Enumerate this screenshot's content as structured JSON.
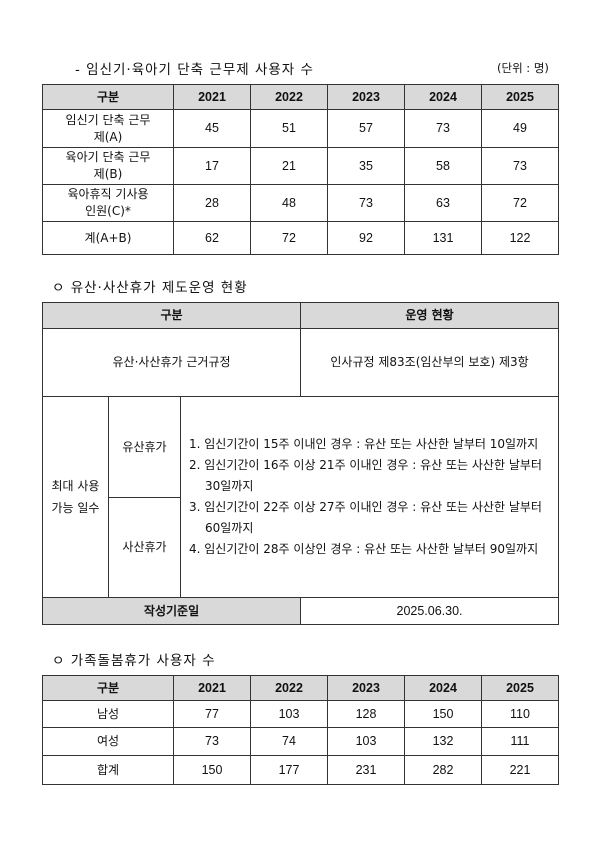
{
  "section1": {
    "title": "- 임신기·육아기 단축 근무제 사용자 수",
    "unit": "(단위 : 명)",
    "headers": [
      "구분",
      "2021",
      "2022",
      "2023",
      "2024",
      "2025"
    ],
    "rows": [
      {
        "label": "임신기 단축 근무제(A)",
        "values": [
          "45",
          "51",
          "57",
          "73",
          "49"
        ]
      },
      {
        "label": "육아기 단축 근무제(B)",
        "values": [
          "17",
          "21",
          "35",
          "58",
          "73"
        ]
      },
      {
        "label": "육아휴직 기사용인원(C)*",
        "values": [
          "28",
          "48",
          "73",
          "63",
          "72"
        ]
      },
      {
        "label": "계(A+B)",
        "values": [
          "62",
          "72",
          "92",
          "131",
          "122"
        ]
      }
    ]
  },
  "section2": {
    "title": "ㅇ 유산·사산휴가 제도운영 현황",
    "header_category": "구분",
    "header_status": "운영 현황",
    "basis_label": "유산·사산휴가 근거규정",
    "basis_value": "인사규정 제83조(임산부의 보호) 제3항",
    "max_days_label": "최대 사용가능 일수",
    "miscarriage_label": "유산휴가",
    "stillbirth_label": "사산휴가",
    "items": [
      "1. 임신기간이 15주 이내인 경우 : 유산 또는 사산한 날부터 10일까지",
      "2. 임신기간이 16주 이상 21주 이내인 경우 : 유산 또는 사산한 날부터 30일까지",
      "3. 임신기간이 22주 이상 27주 이내인 경우 : 유산 또는 사산한 날부터 60일까지",
      "4. 임신기간이 28주 이상인 경우 : 유산 또는 사산한 날부터 90일까지"
    ],
    "date_label": "작성기준일",
    "date_value": "2025.06.30."
  },
  "section3": {
    "title": "ㅇ 가족돌봄휴가 사용자 수",
    "headers": [
      "구분",
      "2021",
      "2022",
      "2023",
      "2024",
      "2025"
    ],
    "rows": [
      {
        "label": "남성",
        "values": [
          "77",
          "103",
          "128",
          "150",
          "110"
        ]
      },
      {
        "label": "여성",
        "values": [
          "73",
          "74",
          "103",
          "132",
          "111"
        ]
      },
      {
        "label": "합계",
        "values": [
          "150",
          "177",
          "231",
          "282",
          "221"
        ]
      }
    ]
  }
}
